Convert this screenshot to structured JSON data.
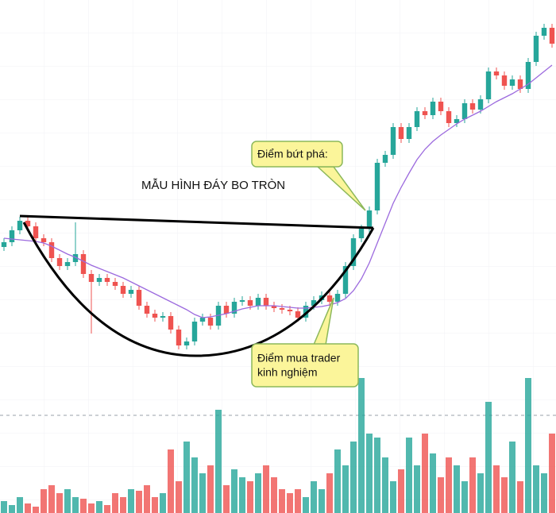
{
  "chart_data": {
    "type": "candlestick",
    "title": "MẪU HÌNH ĐÁY BO TRÒN",
    "annotations": [
      {
        "lines": [
          "Điểm bứt phá:"
        ]
      },
      {
        "lines": [
          "Điểm mua trader",
          "kinh nghiệm"
        ]
      }
    ],
    "up_color": "#26a69a",
    "down_color": "#ef5350",
    "ylim": [
      0,
      646
    ],
    "volume_ylim": [
      0,
      646
    ],
    "open": [
      335,
      341,
      356,
      368,
      361,
      346,
      341,
      321,
      311,
      316,
      326,
      301,
      291,
      296,
      291,
      286,
      276,
      281,
      261,
      251,
      246,
      248,
      231,
      211,
      216,
      241,
      246,
      236,
      261,
      251,
      266,
      268,
      261,
      271,
      261,
      258,
      256,
      254,
      246,
      261,
      268,
      274,
      266,
      276,
      311,
      346,
      358,
      381,
      441,
      451,
      486,
      471,
      486,
      506,
      501,
      518,
      506,
      491,
      496,
      516,
      508,
      521,
      556,
      551,
      538,
      546,
      534,
      568,
      601,
      611
    ],
    "high": [
      346,
      361,
      373,
      373,
      366,
      351,
      346,
      326,
      321,
      366,
      331,
      306,
      301,
      301,
      296,
      291,
      286,
      286,
      266,
      256,
      253,
      253,
      236,
      221,
      246,
      251,
      251,
      266,
      266,
      271,
      273,
      273,
      276,
      276,
      266,
      263,
      261,
      259,
      266,
      273,
      279,
      279,
      281,
      316,
      351,
      363,
      386,
      446,
      456,
      491,
      491,
      491,
      511,
      511,
      523,
      523,
      511,
      501,
      521,
      521,
      526,
      561,
      561,
      556,
      551,
      551,
      573,
      606,
      616,
      616
    ],
    "low": [
      330,
      336,
      351,
      356,
      341,
      336,
      316,
      306,
      306,
      311,
      296,
      226,
      286,
      286,
      281,
      271,
      271,
      256,
      246,
      241,
      241,
      226,
      206,
      206,
      211,
      236,
      231,
      231,
      246,
      246,
      261,
      256,
      256,
      256,
      253,
      251,
      249,
      241,
      241,
      256,
      263,
      261,
      261,
      271,
      306,
      341,
      353,
      376,
      436,
      446,
      466,
      466,
      481,
      496,
      496,
      501,
      486,
      486,
      491,
      503,
      503,
      516,
      546,
      533,
      533,
      529,
      529,
      563,
      596,
      586
    ],
    "close": [
      341,
      356,
      368,
      361,
      346,
      341,
      321,
      311,
      316,
      326,
      301,
      291,
      296,
      291,
      286,
      276,
      281,
      261,
      251,
      246,
      248,
      231,
      211,
      216,
      241,
      246,
      236,
      261,
      251,
      266,
      268,
      261,
      271,
      261,
      258,
      256,
      254,
      246,
      261,
      268,
      274,
      266,
      276,
      311,
      346,
      358,
      381,
      441,
      451,
      486,
      471,
      486,
      506,
      501,
      518,
      506,
      491,
      496,
      516,
      508,
      521,
      556,
      551,
      538,
      546,
      534,
      568,
      601,
      611,
      591
    ],
    "ma": {
      "color": "#9c6ade",
      "values": [
        346,
        345,
        344,
        343,
        342,
        340,
        336,
        331,
        326,
        322,
        317,
        312,
        308,
        304,
        300,
        296,
        291,
        286,
        281,
        276,
        271,
        266,
        261,
        256,
        250,
        246,
        247,
        249,
        251,
        254,
        257,
        259,
        261,
        261,
        261,
        260,
        259,
        258,
        258,
        259,
        260,
        262,
        265,
        270,
        280,
        295,
        315,
        340,
        365,
        390,
        410,
        428,
        445,
        458,
        468,
        476,
        483,
        490,
        496,
        501,
        506,
        512,
        518,
        523,
        528,
        534,
        540,
        548,
        556,
        564
      ]
    },
    "volume": [
      15,
      10,
      20,
      12,
      8,
      30,
      35,
      25,
      30,
      20,
      18,
      12,
      15,
      10,
      25,
      20,
      30,
      28,
      35,
      20,
      25,
      80,
      40,
      90,
      70,
      50,
      60,
      130,
      35,
      55,
      45,
      40,
      50,
      60,
      45,
      30,
      25,
      30,
      20,
      40,
      30,
      50,
      80,
      60,
      90,
      170,
      100,
      95,
      70,
      40,
      55,
      95,
      60,
      100,
      75,
      45,
      70,
      60,
      40,
      70,
      50,
      140,
      60,
      45,
      90,
      40,
      170,
      60,
      50,
      100
    ]
  }
}
